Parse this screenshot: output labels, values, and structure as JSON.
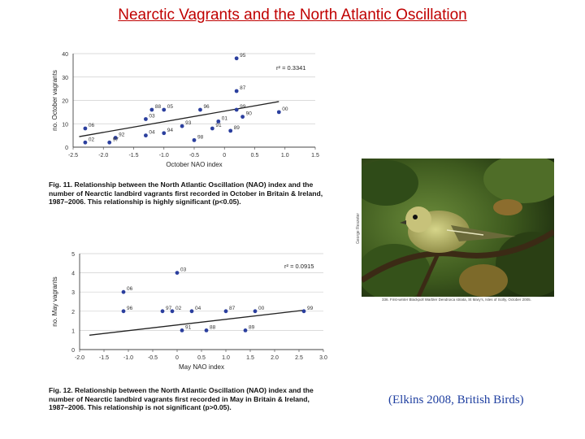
{
  "slide": {
    "title": "Nearctic Vagrants and the North Atlantic Oscillation",
    "citation": "(Elkins 2008, British Birds)",
    "photo_credit": "George Reszeter",
    "photo_caption": "336. First-winter Blackpoll Warbler Dendroica striata, St Mary's, Isles of Scilly, October 2005.",
    "colors": {
      "title": "#c00000",
      "citation": "#1f3fa0",
      "points": "#2b3f9e",
      "trend": "#222222",
      "grid": "#cfcfcf"
    }
  },
  "chart_data": [
    {
      "type": "scatter",
      "title": "",
      "xlabel": "October NAO index",
      "ylabel": "no. October vagrants",
      "xlim": [
        -2.5,
        1.5
      ],
      "ylim": [
        0,
        40
      ],
      "xticks": [
        "-2.5",
        "-2.0",
        "-1.5",
        "-1.0",
        "-0.5",
        "0",
        "0.5",
        "1.0",
        "1.5"
      ],
      "yticks": [
        "0",
        "10",
        "20",
        "30",
        "40"
      ],
      "grid": true,
      "r2_label": "r² = 0.3341",
      "trend": {
        "x": [
          -2.4,
          0.9
        ],
        "y": [
          4.5,
          19.5
        ]
      },
      "points": [
        {
          "label": "95",
          "x": 0.2,
          "y": 38
        },
        {
          "label": "87",
          "x": 0.2,
          "y": 24
        },
        {
          "label": "88",
          "x": -1.2,
          "y": 16
        },
        {
          "label": "05",
          "x": -1.0,
          "y": 16
        },
        {
          "label": "96",
          "x": -0.4,
          "y": 16
        },
        {
          "label": "99",
          "x": 0.2,
          "y": 16
        },
        {
          "label": "00",
          "x": 0.9,
          "y": 15
        },
        {
          "label": "03",
          "x": -1.3,
          "y": 12
        },
        {
          "label": "01",
          "x": -0.1,
          "y": 11
        },
        {
          "label": "90",
          "x": 0.3,
          "y": 13
        },
        {
          "label": "06",
          "x": -2.3,
          "y": 8
        },
        {
          "label": "93",
          "x": -0.7,
          "y": 9
        },
        {
          "label": "91",
          "x": -0.2,
          "y": 8
        },
        {
          "label": "89",
          "x": 0.1,
          "y": 7
        },
        {
          "label": "94",
          "x": -1.0,
          "y": 6
        },
        {
          "label": "04",
          "x": -1.3,
          "y": 5
        },
        {
          "label": "92",
          "x": -1.8,
          "y": 4
        },
        {
          "label": "02",
          "x": -2.3,
          "y": 2
        },
        {
          "label": "97",
          "x": -1.9,
          "y": 2
        },
        {
          "label": "98",
          "x": -0.5,
          "y": 3
        }
      ],
      "caption_label": "Fig. 11.",
      "caption_text": "Relationship between the North Atlantic Oscillation (NAO) index and the number of Nearctic landbird vagrants first recorded in October in Britain & Ireland, 1987–2006. This relationship is highly significant (p<0.05)."
    },
    {
      "type": "scatter",
      "title": "",
      "xlabel": "May NAO index",
      "ylabel": "no. May vagrants",
      "xlim": [
        -2.0,
        3.0
      ],
      "ylim": [
        0,
        5
      ],
      "xticks": [
        "-2.0",
        "-1.5",
        "-1.0",
        "-0.5",
        "0",
        "0.5",
        "1.0",
        "1.5",
        "2.0",
        "2.5",
        "3.0"
      ],
      "yticks": [
        "0",
        "1",
        "2",
        "3",
        "4",
        "5"
      ],
      "grid": true,
      "r2_label": "r² = 0.0915",
      "trend": {
        "x": [
          -1.8,
          2.6
        ],
        "y": [
          0.75,
          2.05
        ]
      },
      "points": [
        {
          "label": "03",
          "x": 0.0,
          "y": 4
        },
        {
          "label": "06",
          "x": -1.1,
          "y": 3
        },
        {
          "label": "96",
          "x": -1.1,
          "y": 2
        },
        {
          "label": "97",
          "x": -0.3,
          "y": 2
        },
        {
          "label": "02",
          "x": -0.1,
          "y": 2
        },
        {
          "label": "04",
          "x": 0.3,
          "y": 2
        },
        {
          "label": "87",
          "x": 1.0,
          "y": 2
        },
        {
          "label": "00",
          "x": 1.6,
          "y": 2
        },
        {
          "label": "99",
          "x": 2.6,
          "y": 2
        },
        {
          "label": "91",
          "x": 0.1,
          "y": 1
        },
        {
          "label": "88",
          "x": 0.6,
          "y": 1
        },
        {
          "label": "89",
          "x": 1.4,
          "y": 1
        }
      ],
      "caption_label": "Fig. 12.",
      "caption_text": "Relationship between the North Atlantic Oscillation (NAO) index and the number of Nearctic landbird vagrants first recorded in May in Britain & Ireland, 1987–2006. This relationship is not significant (p>0.05)."
    }
  ]
}
